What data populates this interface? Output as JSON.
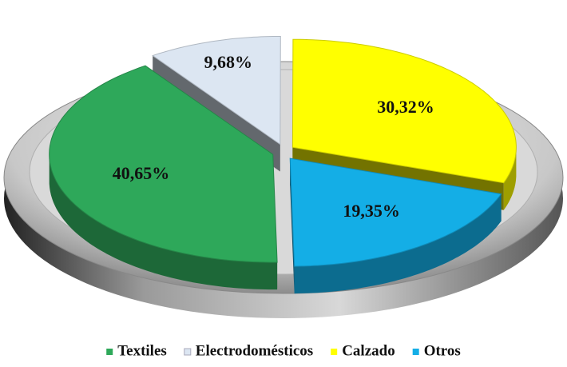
{
  "chart_data": {
    "type": "pie",
    "categories": [
      "Textiles",
      "Electrodomésticos",
      "Calzado",
      "Otros"
    ],
    "values": [
      40.65,
      9.68,
      30.32,
      19.35
    ],
    "value_labels": [
      "40,65%",
      "9,68%",
      "30,32%",
      "19,35%"
    ],
    "colors": [
      "#2ea85a",
      "#dce6f2",
      "#ffff00",
      "#14aee6"
    ],
    "legend": "bottom"
  }
}
